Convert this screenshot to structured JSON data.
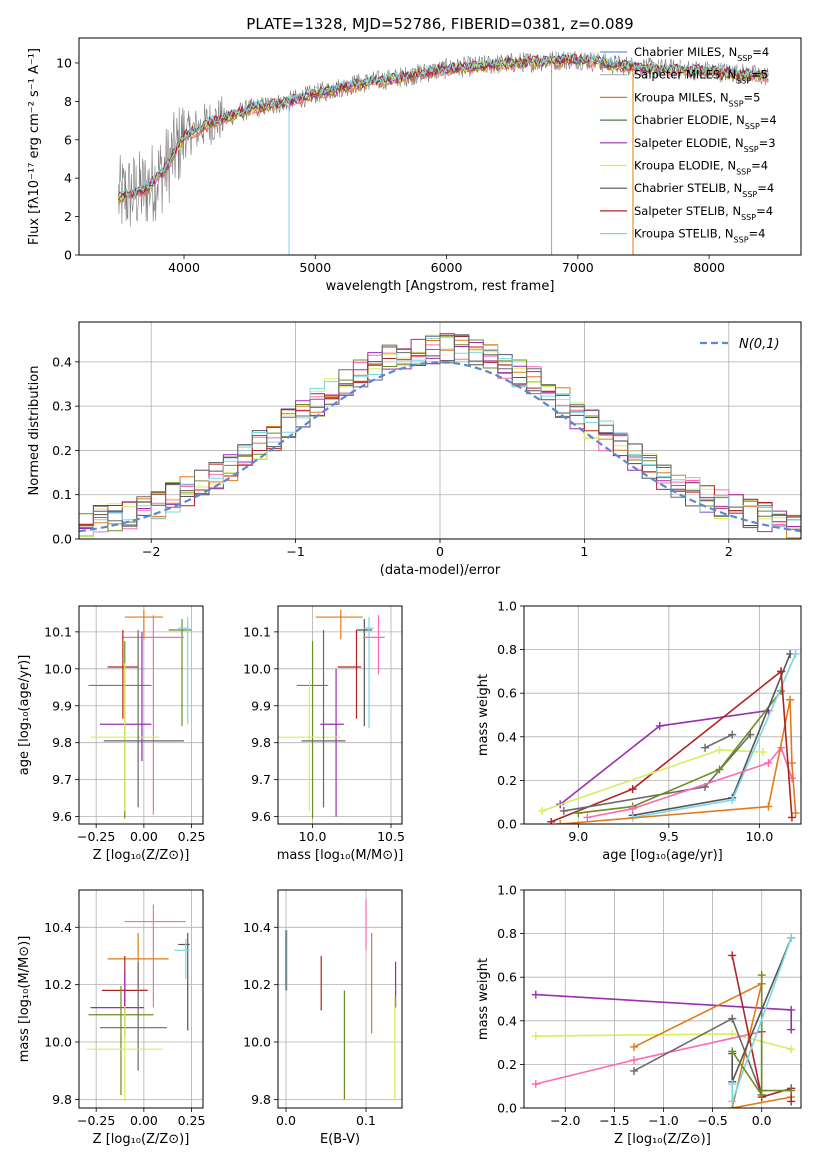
{
  "figure_title": "PLATE=1328, MJD=52786, FIBERID=0381, z=0.089",
  "series_colors": [
    "#6a6a6a",
    "#e07b1a",
    "#6b8e23",
    "#ff69b4",
    "#9a2fb0",
    "#d6ef5a",
    "#555555",
    "#b22222",
    "#7fd6e0"
  ],
  "chart_data": [
    {
      "id": "spectrum",
      "type": "line",
      "title": "PLATE=1328, MJD=52786, FIBERID=0381, z=0.089",
      "xlabel": "wavelength [Angstrom, rest frame]",
      "ylabel": "Flux [f$_\\lambda$10$^{-17}$ erg cm$^{-2}$ s$^{-1}$ A$^{-1}$]",
      "ylabel_display": "Flux [fλ10⁻¹⁷ erg cm⁻² s⁻¹ A⁻¹]",
      "xlim": [
        3200,
        8700
      ],
      "ylim": [
        0,
        11.3
      ],
      "xticks": [
        4000,
        5000,
        6000,
        7000,
        8000
      ],
      "yticks": [
        0,
        2,
        4,
        6,
        8,
        10
      ],
      "grid": false,
      "legend_position": "upper-right",
      "legend": [
        {
          "label": "Chabrier MILES, N$_{SSP}$=4",
          "color": "#6495ed"
        },
        {
          "label": "Salpeter MILES, N$_{SSP}$=5",
          "color": "#b0b0b0"
        },
        {
          "label": "Kroupa MILES, N$_{SSP}$=5",
          "color": "#e07b1a"
        },
        {
          "label": "Chabrier ELODIE, N$_{SSP}$=4",
          "color": "#4e7a52"
        },
        {
          "label": "Salpeter ELODIE, N$_{SSP}$=3",
          "color": "#9a2fb0"
        },
        {
          "label": "Kroupa ELODIE, N$_{SSP}$=4",
          "color": "#d6ef5a"
        },
        {
          "label": "Chabrier STELIB, N$_{SSP}$=4",
          "color": "#555555"
        },
        {
          "label": "Salpeter STELIB, N$_{SSP}$=4",
          "color": "#b22222"
        },
        {
          "label": "Kroupa STELIB, N$_{SSP}$=4",
          "color": "#7fd6e0"
        }
      ],
      "legend_display": [
        "Chabrier MILES, N_SSP=4",
        "Salpeter MILES, N_SSP=5",
        "Kroupa MILES, N_SSP=5",
        "Chabrier ELODIE, N_SSP=4",
        "Salpeter ELODIE, N_SSP=3",
        "Kroupa ELODIE, N_SSP=4",
        "Chabrier STELIB, N_SSP=4",
        "Salpeter STELIB, N_SSP=4",
        "Kroupa STELIB, N_SSP=4"
      ],
      "data_range": [
        3500,
        8450
      ],
      "model_trend": [
        [
          3500,
          3.0
        ],
        [
          3700,
          3.4
        ],
        [
          3850,
          4.4
        ],
        [
          4000,
          6.2
        ],
        [
          4200,
          6.9
        ],
        [
          4500,
          7.6
        ],
        [
          4800,
          8.0
        ],
        [
          5000,
          8.4
        ],
        [
          5300,
          8.9
        ],
        [
          5600,
          9.2
        ],
        [
          6000,
          9.7
        ],
        [
          6500,
          10.0
        ],
        [
          7000,
          10.2
        ],
        [
          7300,
          9.9
        ],
        [
          7600,
          9.7
        ],
        [
          8000,
          9.6
        ],
        [
          8450,
          9.3
        ]
      ]
    },
    {
      "id": "residuals",
      "type": "histogram",
      "xlabel": "(data-model)/error",
      "ylabel": "Normed distribution",
      "xlim": [
        -2.5,
        2.5
      ],
      "ylim": [
        0,
        0.49
      ],
      "xticks": [
        -2,
        -1,
        0,
        1,
        2
      ],
      "yticks": [
        0.0,
        0.1,
        0.2,
        0.3,
        0.4
      ],
      "grid": true,
      "legend_position": "upper-right",
      "legend": [
        {
          "label": "N(0,1)",
          "color": "#5a86d8",
          "style": "dashed"
        }
      ],
      "reference_curve": "normal(0,1)",
      "bin_width": 0.1
    },
    {
      "id": "age_vs_Z",
      "type": "errorbar",
      "xlabel": "Z [log$_{10}$(Z/Z$_\\odot$)]",
      "xlabel_display": "Z [log₁₀(Z/Z⊙)]",
      "ylabel_display": "age  [log₁₀(age/yr)]",
      "xlim": [
        -0.34,
        0.31
      ],
      "ylim": [
        9.58,
        10.17
      ],
      "xticks": [
        -0.25,
        0.0,
        0.25
      ],
      "yticks": [
        9.6,
        9.7,
        9.8,
        9.9,
        10.0,
        10.1
      ],
      "grid": true,
      "points": [
        {
          "x": 0.0,
          "xerr": [
            0.1,
            0.1
          ],
          "y": 10.14,
          "yerr": [
            0.06,
            0.02
          ],
          "color": 1
        },
        {
          "x": 0.2,
          "xerr": [
            0.07,
            0.05
          ],
          "y": 10.105,
          "yerr": [
            0.26,
            0.03
          ],
          "color": 2
        },
        {
          "x": 0.23,
          "xerr": [
            0.05,
            0.01
          ],
          "y": 10.11,
          "yerr": [
            0.26,
            0.03
          ],
          "color": 8
        },
        {
          "x": 0.05,
          "xerr": [
            0.16,
            0.16
          ],
          "y": 10.085,
          "yerr": [
            0.48,
            0.06
          ],
          "color": 3
        },
        {
          "x": -0.11,
          "xerr": [
            0.08,
            0.08
          ],
          "y": 10.005,
          "yerr": [
            0.14,
            0.1
          ],
          "color": 7
        },
        {
          "x": -0.1,
          "xerr": [
            0.19,
            0.14
          ],
          "y": 9.955,
          "yerr": [
            0.36,
            0.12
          ],
          "color": 2
        },
        {
          "x": -0.01,
          "xerr": [
            0.22,
            0.05
          ],
          "y": 9.85,
          "yerr": [
            0.1,
            0.25
          ],
          "color": 4
        },
        {
          "x": -0.1,
          "xerr": [
            0.18,
            0.18
          ],
          "y": 9.815,
          "yerr": [
            0.2,
            0.2
          ],
          "color": 5
        },
        {
          "x": -0.03,
          "xerr": [
            0.18,
            0.24
          ],
          "y": 9.805,
          "yerr": [
            0.18,
            0.3
          ],
          "color": 0
        }
      ]
    },
    {
      "id": "age_vs_mass",
      "type": "errorbar",
      "xlabel": "mass [log$_{10}$(M/M$_\\odot$)]",
      "xlabel_display": "mass [log₁₀(M/M⊙)]",
      "xlim": [
        9.78,
        10.57
      ],
      "ylim": [
        9.58,
        10.17
      ],
      "xticks": [
        10.0,
        10.5
      ],
      "yticks": [
        9.6,
        9.7,
        9.8,
        9.9,
        10.0,
        10.1
      ],
      "grid": true,
      "points": [
        {
          "x": 10.18,
          "xerr": [
            0.16,
            0.14
          ],
          "y": 10.14,
          "yerr": [
            0.06,
            0.02
          ],
          "color": 1
        },
        {
          "x": 10.33,
          "xerr": [
            0.05,
            0.05
          ],
          "y": 10.105,
          "yerr": [
            0.26,
            0.03
          ],
          "color": 6
        },
        {
          "x": 10.36,
          "xerr": [
            0.03,
            0.03
          ],
          "y": 10.11,
          "yerr": [
            0.27,
            0.03
          ],
          "color": 8
        },
        {
          "x": 10.42,
          "xerr": [
            0.1,
            0.04
          ],
          "y": 10.085,
          "yerr": [
            0.1,
            0.06
          ],
          "color": 3
        },
        {
          "x": 10.28,
          "xerr": [
            0.12,
            0.03
          ],
          "y": 10.005,
          "yerr": [
            0.14,
            0.1
          ],
          "color": 7
        },
        {
          "x": 10.0,
          "xerr": [
            0.1,
            0.1
          ],
          "y": 9.955,
          "yerr": [
            0.36,
            0.12
          ],
          "color": 2
        },
        {
          "x": 10.15,
          "xerr": [
            0.1,
            0.05
          ],
          "y": 9.85,
          "yerr": [
            0.25,
            0.15
          ],
          "color": 4
        },
        {
          "x": 9.98,
          "xerr": [
            0.2,
            0.2
          ],
          "y": 9.815,
          "yerr": [
            0.2,
            0.15
          ],
          "color": 5
        },
        {
          "x": 10.07,
          "xerr": [
            0.14,
            0.14
          ],
          "y": 9.805,
          "yerr": [
            0.18,
            0.3
          ],
          "color": 0
        }
      ]
    },
    {
      "id": "massweight_vs_age",
      "type": "line",
      "xlabel_display": "age  [log₁₀(age/yr)]",
      "ylabel": "mass weight",
      "xlim": [
        8.7,
        10.23
      ],
      "ylim": [
        0,
        1.0
      ],
      "xticks": [
        9.0,
        9.5,
        10.0
      ],
      "yticks": [
        0.0,
        0.2,
        0.4,
        0.6,
        0.8,
        1.0
      ],
      "grid": true,
      "series": [
        {
          "color": 4,
          "x": [
            8.9,
            9.45,
            10.05
          ],
          "y": [
            0.09,
            0.45,
            0.52
          ]
        },
        {
          "color": 7,
          "x": [
            8.85,
            9.3,
            10.12
          ],
          "y": [
            0.01,
            0.16,
            0.7
          ]
        },
        {
          "color": 5,
          "x": [
            8.8,
            9.78,
            10.02
          ],
          "y": [
            0.06,
            0.34,
            0.33
          ]
        },
        {
          "color": 0,
          "x": [
            8.92,
            9.7,
            9.95
          ],
          "y": [
            0.06,
            0.17,
            0.41
          ]
        },
        {
          "color": 0,
          "x": [
            9.7,
            9.85
          ],
          "y": [
            0.35,
            0.41
          ]
        },
        {
          "color": 2,
          "x": [
            9.0,
            9.3,
            9.78,
            10.12
          ],
          "y": [
            0.05,
            0.08,
            0.25,
            0.61
          ]
        },
        {
          "color": 6,
          "x": [
            9.3,
            9.85,
            10.17
          ],
          "y": [
            0.04,
            0.12,
            0.78
          ]
        },
        {
          "color": 8,
          "x": [
            9.3,
            9.85,
            10.2
          ],
          "y": [
            0.03,
            0.11,
            0.78
          ]
        },
        {
          "color": 3,
          "x": [
            9.05,
            9.3,
            10.05,
            10.12,
            10.18
          ],
          "y": [
            0.03,
            0.07,
            0.28,
            0.35,
            0.21
          ]
        },
        {
          "color": 1,
          "x": [
            8.9,
            10.05,
            10.17,
            10.18,
            10.2
          ],
          "y": [
            0.0,
            0.08,
            0.57,
            0.28,
            0.05
          ]
        },
        {
          "color": 7,
          "x": [
            10.12,
            10.18
          ],
          "y": [
            0.7,
            0.03
          ]
        }
      ]
    },
    {
      "id": "mass_vs_Z",
      "type": "errorbar",
      "xlabel_display": "Z [log₁₀(Z/Z⊙)]",
      "ylabel_display": "mass [log₁₀(M/M⊙)]",
      "xlim": [
        -0.34,
        0.31
      ],
      "ylim": [
        9.77,
        10.53
      ],
      "xticks": [
        -0.25,
        0.0,
        0.25
      ],
      "yticks": [
        9.8,
        10.0,
        10.2,
        10.4
      ],
      "grid": true,
      "points": [
        {
          "x": 0.05,
          "xerr": [
            0.15,
            0.17
          ],
          "y": 10.42,
          "yerr": [
            0.3,
            0.06
          ],
          "color": 3
        },
        {
          "x": 0.23,
          "xerr": [
            0.05,
            0.01
          ],
          "y": 10.34,
          "yerr": [
            0.3,
            0.04
          ],
          "color": 6
        },
        {
          "x": 0.22,
          "xerr": [
            0.06,
            0.02
          ],
          "y": 10.32,
          "yerr": [
            0.1,
            0.04
          ],
          "color": 8
        },
        {
          "x": -0.03,
          "xerr": [
            0.16,
            0.16
          ],
          "y": 10.29,
          "yerr": [
            0.1,
            0.09
          ],
          "color": 1
        },
        {
          "x": -0.1,
          "xerr": [
            0.12,
            0.12
          ],
          "y": 10.18,
          "yerr": [
            0.1,
            0.12
          ],
          "color": 7
        },
        {
          "x": -0.1,
          "xerr": [
            0.18,
            0.1
          ],
          "y": 10.12,
          "yerr": [
            0.1,
            0.12
          ],
          "color": 4
        },
        {
          "x": -0.12,
          "xerr": [
            0.17,
            0.17
          ],
          "y": 10.095,
          "yerr": [
            0.28,
            0.1
          ],
          "color": 2
        },
        {
          "x": -0.03,
          "xerr": [
            0.2,
            0.15
          ],
          "y": 10.05,
          "yerr": [
            0.15,
            0.23
          ],
          "color": 0
        },
        {
          "x": -0.1,
          "xerr": [
            0.2,
            0.2
          ],
          "y": 9.975,
          "yerr": [
            0.18,
            0.15
          ],
          "color": 5
        }
      ]
    },
    {
      "id": "mass_vs_ebv",
      "type": "errorbar",
      "xlabel": "E(B-V)",
      "xlim": [
        -0.01,
        0.145
      ],
      "ylim": [
        9.77,
        10.53
      ],
      "xticks": [
        0.0,
        0.1
      ],
      "yticks": [
        9.8,
        10.0,
        10.2,
        10.4
      ],
      "grid": true,
      "points": [
        {
          "x": 0.1,
          "y": 10.42,
          "yerr": [
            0.1,
            0.08
          ],
          "color": 3
        },
        {
          "x": 0.001,
          "y": 10.28,
          "yerr": [
            0.1,
            0.11
          ],
          "color": 8
        },
        {
          "x": 0.0,
          "y": 10.32,
          "yerr": [
            0.14,
            0.07
          ],
          "color": 6
        },
        {
          "x": 0.107,
          "y": 10.2,
          "yerr": [
            0.17,
            0.18
          ],
          "color": 1
        },
        {
          "x": 0.044,
          "y": 10.2,
          "yerr": [
            0.09,
            0.1
          ],
          "color": 7
        },
        {
          "x": 0.073,
          "y": 10.0,
          "yerr": [
            0.2,
            0.18
          ],
          "color": 2
        },
        {
          "x": 0.137,
          "y": 10.2,
          "yerr": [
            0.08,
            0.08
          ],
          "color": 4
        },
        {
          "x": 0.136,
          "y": 9.98,
          "yerr": [
            0.18,
            0.18
          ],
          "color": 5
        }
      ]
    },
    {
      "id": "massweight_vs_Z",
      "type": "line",
      "xlabel_display": "Z [log₁₀(Z/Z⊙)]",
      "ylabel": "mass weight",
      "xlim": [
        -2.42,
        0.4
      ],
      "ylim": [
        0,
        1.0
      ],
      "xticks": [
        -2.0,
        -1.5,
        -1.0,
        -0.5,
        0.0
      ],
      "yticks": [
        0.0,
        0.2,
        0.4,
        0.6,
        0.8,
        1.0
      ],
      "grid": true,
      "series": [
        {
          "color": 4,
          "x": [
            -2.3,
            0.3,
            0.3
          ],
          "y": [
            0.52,
            0.45,
            0.36
          ]
        },
        {
          "color": 5,
          "x": [
            -2.3,
            -0.3,
            0.3
          ],
          "y": [
            0.33,
            0.34,
            0.27
          ]
        },
        {
          "color": 3,
          "x": [
            -2.3,
            -1.3,
            0.0
          ],
          "y": [
            0.11,
            0.22,
            0.35
          ]
        },
        {
          "color": 1,
          "x": [
            -1.3,
            0.0,
            -0.3,
            0.3
          ],
          "y": [
            0.28,
            0.57,
            0.0,
            0.05
          ]
        },
        {
          "color": 0,
          "x": [
            -1.3,
            -0.3,
            0.0,
            0.0
          ],
          "y": [
            0.17,
            0.41,
            0.06,
            0.35
          ]
        },
        {
          "color": 7,
          "x": [
            -0.3,
            0.0,
            0.3,
            0.3
          ],
          "y": [
            0.7,
            0.05,
            0.09,
            0.03
          ]
        },
        {
          "color": 2,
          "x": [
            0.0,
            0.0,
            0.3
          ],
          "y": [
            0.61,
            0.08,
            0.08
          ]
        },
        {
          "color": 6,
          "x": [
            -0.3,
            -0.3,
            0.3
          ],
          "y": [
            0.25,
            0.12,
            0.78
          ]
        },
        {
          "color": 8,
          "x": [
            -0.3,
            -0.3,
            0.3
          ],
          "y": [
            0.11,
            0.03,
            0.78
          ]
        },
        {
          "color": 2,
          "x": [
            -0.3,
            0.0
          ],
          "y": [
            0.26,
            0.06
          ]
        }
      ]
    }
  ]
}
